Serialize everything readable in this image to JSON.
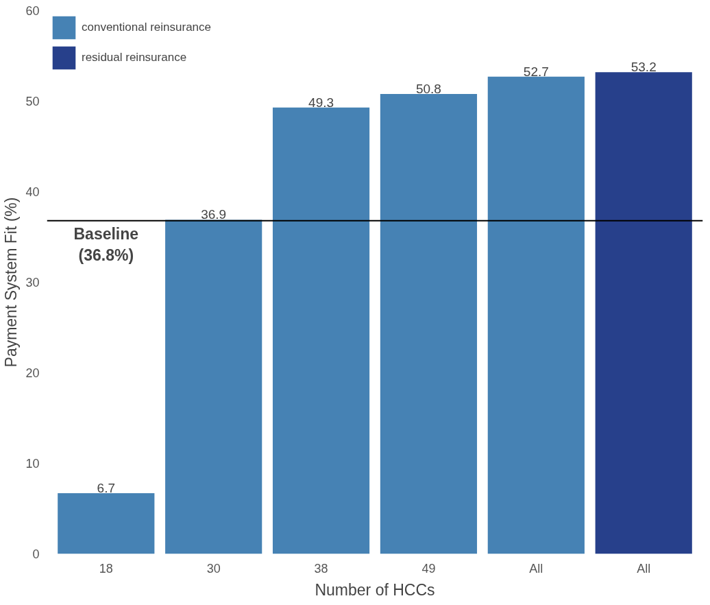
{
  "chart_data": {
    "type": "bar",
    "xlabel": "Number of HCCs",
    "ylabel": "Payment System Fit (%)",
    "categories": [
      "18",
      "30",
      "38",
      "49",
      "All",
      "All"
    ],
    "series": [
      {
        "name": "conventional reinsurance",
        "color": "#4682b4",
        "values": [
          6.7,
          36.9,
          49.3,
          50.8,
          52.7,
          null
        ]
      },
      {
        "name": "residual reinsurance",
        "color": "#27408b",
        "values": [
          null,
          null,
          null,
          null,
          null,
          53.2
        ]
      }
    ],
    "ylim": [
      0,
      60
    ],
    "yticks": [
      0,
      10,
      20,
      30,
      40,
      50,
      60
    ],
    "ref_lines": [
      {
        "axis": "y",
        "value": 36.8,
        "label": "Baseline\n(36.8%)",
        "color": "#000000"
      }
    ],
    "data_labels": true,
    "grid": false,
    "legend": "top left"
  }
}
